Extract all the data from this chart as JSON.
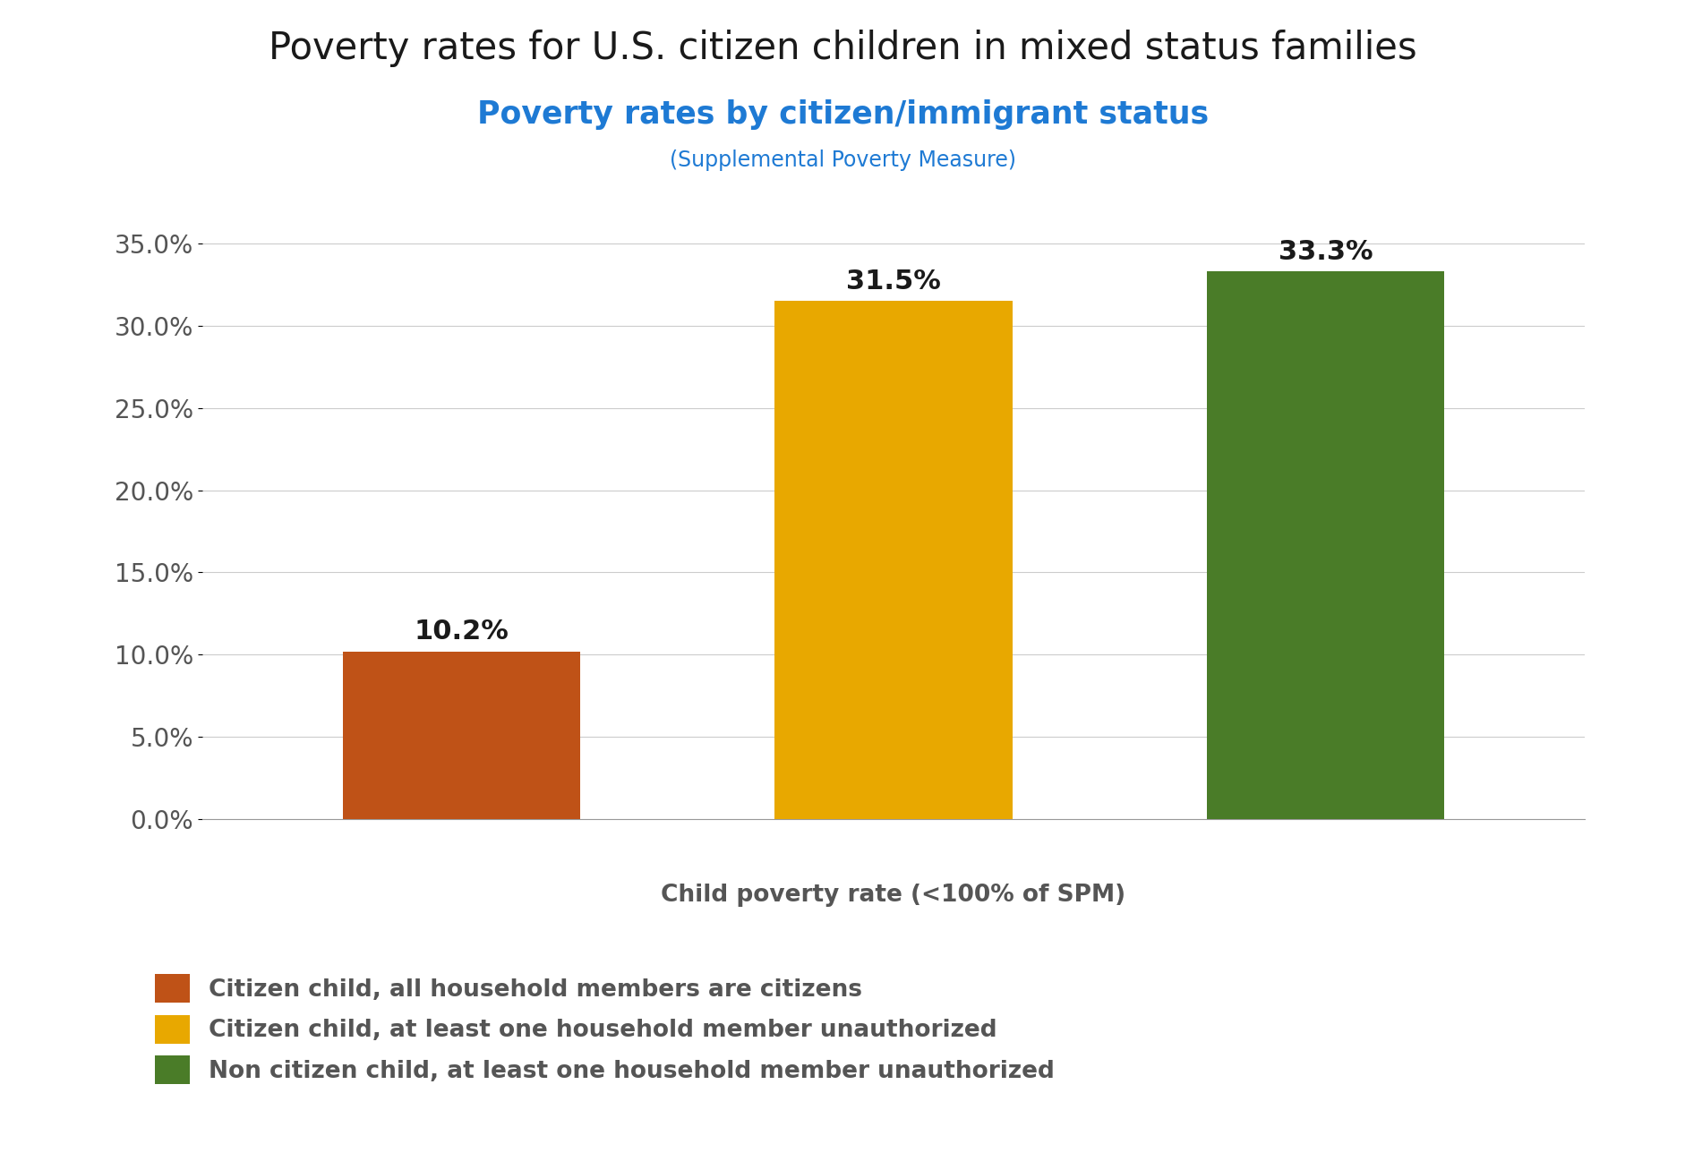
{
  "title": "Poverty rates for U.S. citizen children in mixed status families",
  "subtitle1": "Poverty rates by citizen/immigrant status",
  "subtitle2": "(Supplemental Poverty Measure)",
  "title_color": "#1a1a1a",
  "subtitle1_color": "#1e7ad4",
  "subtitle2_color": "#1e7ad4",
  "values": [
    10.2,
    31.5,
    33.3
  ],
  "bar_colors": [
    "#bf5217",
    "#e8a800",
    "#4a7c28"
  ],
  "value_labels": [
    "10.2%",
    "31.5%",
    "33.3%"
  ],
  "xlabel": "Child poverty rate (<100% of SPM)",
  "ylim": [
    0,
    37
  ],
  "yticks": [
    0.0,
    5.0,
    10.0,
    15.0,
    20.0,
    25.0,
    30.0,
    35.0
  ],
  "ytick_labels": [
    "0.0%",
    "5.0%",
    "10.0%",
    "15.0%",
    "20.0%",
    "25.0%",
    "30.0%",
    "35.0%"
  ],
  "legend_labels": [
    "Citizen child, all household members are citizens",
    "Citizen child, at least one household member unauthorized",
    "Non citizen child, at least one household member unauthorized"
  ],
  "legend_colors": [
    "#bf5217",
    "#e8a800",
    "#4a7c28"
  ],
  "background_color": "#ffffff",
  "grid_color": "#cccccc",
  "bar_label_fontsize": 22,
  "bar_label_color": "#1a1a1a",
  "xlabel_fontsize": 19,
  "ytick_fontsize": 20,
  "title_fontsize": 30,
  "subtitle1_fontsize": 25,
  "subtitle2_fontsize": 17,
  "legend_fontsize": 19
}
